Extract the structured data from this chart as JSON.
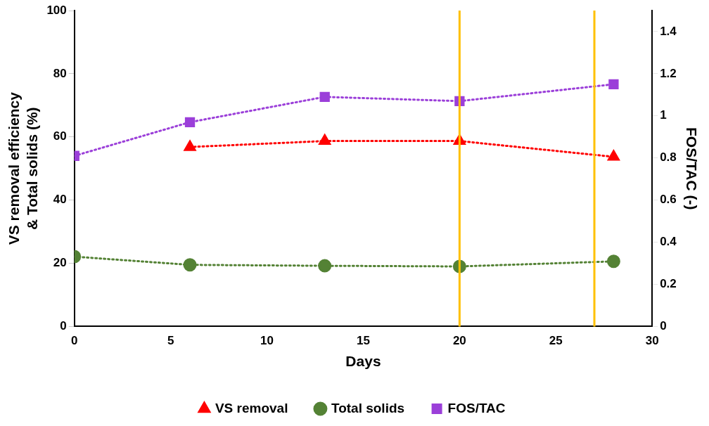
{
  "chart_data": {
    "type": "line",
    "xlabel": "Days",
    "ylabel": "VS removal efficiency & Total solids (%)",
    "y2label": "FOS/TAC (-)",
    "series": [
      {
        "name": "VS removal",
        "color": "#ff0000",
        "marker": "triangle",
        "x": [
          6,
          13,
          20,
          28
        ],
        "values": [
          56.8,
          58.7,
          58.7,
          53.7
        ]
      },
      {
        "name": "Total solids",
        "color": "#548235",
        "marker": "circle",
        "x": [
          0,
          6,
          13,
          20,
          28
        ],
        "values": [
          22.1,
          19.5,
          19.2,
          19.0,
          20.6
        ]
      },
      {
        "name": "FOS/TAC",
        "color": "#9b3fd9",
        "marker": "square",
        "axis": "y2",
        "x": [
          0,
          6,
          13,
          20,
          28
        ],
        "values": [
          0.81,
          0.97,
          1.09,
          1.07,
          1.15
        ]
      }
    ],
    "xlim": [
      0,
      30
    ],
    "xticks": [
      0,
      5,
      10,
      15,
      20,
      25,
      30
    ],
    "ylim": [
      0,
      100
    ],
    "yticks": [
      0,
      20,
      40,
      60,
      80,
      100
    ],
    "y2lim": [
      0,
      1.5
    ],
    "y2ticks": [
      0,
      0.2,
      0.4,
      0.6,
      0.8,
      1,
      1.2,
      1.4
    ],
    "ref_lines": [
      {
        "axis": "x",
        "value": 20,
        "color": "#ffc000"
      },
      {
        "axis": "x",
        "value": 27,
        "color": "#ffc000"
      }
    ],
    "grid": false,
    "legend": "bottom",
    "line_style": "dotted"
  }
}
